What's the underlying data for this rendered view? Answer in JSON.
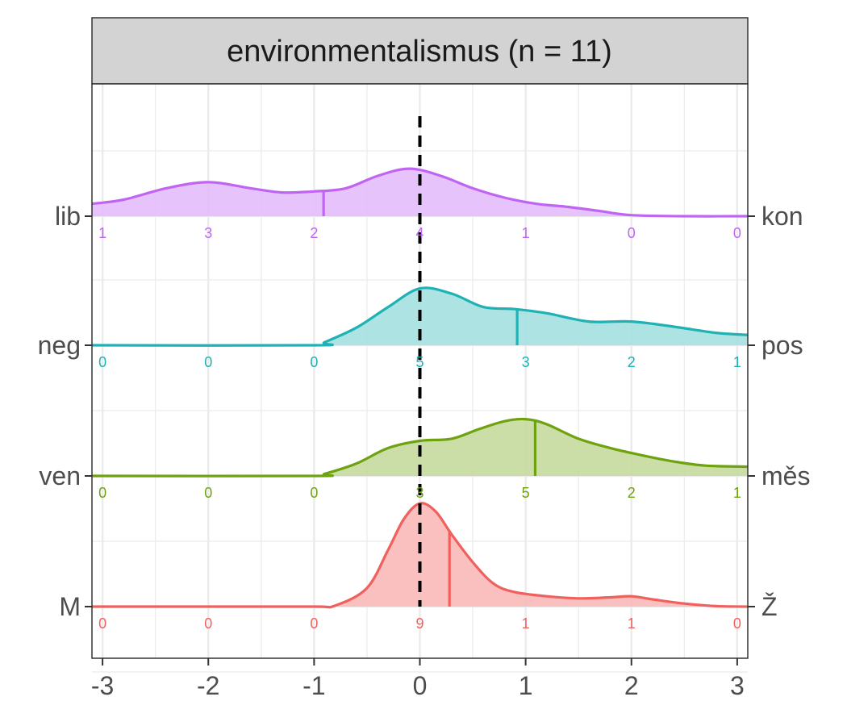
{
  "strip_title": "environmentalismus (n = 11)",
  "chart_data": {
    "type": "ridgeline",
    "title": "environmentalismus (n = 11)",
    "xlabel": "",
    "ylabel": "",
    "xlim": [
      -3.1,
      3.1
    ],
    "x_ticks": [
      -3,
      -2,
      -1,
      0,
      1,
      2,
      3
    ],
    "x_tick_labels": [
      "-3",
      "-2",
      "-1",
      "0",
      "1",
      "2",
      "3"
    ],
    "reference_line_x": 0,
    "count_positions": [
      -3,
      -2,
      -1,
      0,
      1,
      2,
      3
    ],
    "series": [
      {
        "left_label": "M",
        "right_label": "Ž",
        "color": "#F0605D",
        "fill": "#F8B9B8",
        "mean": 0.28,
        "counts": [
          "0",
          "0",
          "0",
          "9",
          "1",
          "1",
          "0"
        ],
        "density": [
          [
            -3.1,
            0
          ],
          [
            -2,
            0
          ],
          [
            -1,
            0
          ],
          [
            -0.8,
            0.01
          ],
          [
            -0.5,
            0.18
          ],
          [
            -0.3,
            0.55
          ],
          [
            -0.15,
            0.85
          ],
          [
            0,
            1.0
          ],
          [
            0.15,
            0.92
          ],
          [
            0.3,
            0.7
          ],
          [
            0.5,
            0.43
          ],
          [
            0.7,
            0.22
          ],
          [
            0.9,
            0.14
          ],
          [
            1.2,
            0.1
          ],
          [
            1.5,
            0.08
          ],
          [
            1.8,
            0.09
          ],
          [
            2.0,
            0.1
          ],
          [
            2.2,
            0.07
          ],
          [
            2.5,
            0.03
          ],
          [
            2.8,
            0.005
          ],
          [
            3.1,
            0
          ]
        ]
      },
      {
        "left_label": "ven",
        "right_label": "měs",
        "color": "#6FA20F",
        "fill": "#C5DA9F",
        "mean": 1.09,
        "counts": [
          "0",
          "0",
          "0",
          "3",
          "5",
          "2",
          "1"
        ],
        "density": [
          [
            -3.1,
            0
          ],
          [
            -1,
            0
          ],
          [
            -0.9,
            0.02
          ],
          [
            -0.6,
            0.12
          ],
          [
            -0.3,
            0.27
          ],
          [
            0,
            0.34
          ],
          [
            0.3,
            0.36
          ],
          [
            0.55,
            0.45
          ],
          [
            0.8,
            0.53
          ],
          [
            1.0,
            0.55
          ],
          [
            1.2,
            0.5
          ],
          [
            1.5,
            0.36
          ],
          [
            1.8,
            0.27
          ],
          [
            2.1,
            0.2
          ],
          [
            2.4,
            0.14
          ],
          [
            2.7,
            0.1
          ],
          [
            3.1,
            0.09
          ]
        ]
      },
      {
        "left_label": "neg",
        "right_label": "pos",
        "color": "#1FB1B3",
        "fill": "#A5E0E1",
        "mean": 0.92,
        "counts": [
          "0",
          "0",
          "0",
          "5",
          "3",
          "2",
          "1"
        ],
        "density": [
          [
            -3.1,
            0
          ],
          [
            -1,
            0
          ],
          [
            -0.9,
            0.03
          ],
          [
            -0.6,
            0.17
          ],
          [
            -0.3,
            0.37
          ],
          [
            0,
            0.55
          ],
          [
            0.3,
            0.5
          ],
          [
            0.6,
            0.37
          ],
          [
            0.9,
            0.35
          ],
          [
            1.2,
            0.31
          ],
          [
            1.6,
            0.23
          ],
          [
            2.0,
            0.23
          ],
          [
            2.4,
            0.18
          ],
          [
            2.8,
            0.12
          ],
          [
            3.1,
            0.1
          ]
        ]
      },
      {
        "left_label": "lib",
        "right_label": "kon",
        "color": "#C065F3",
        "fill": "#E3BDFB",
        "mean": -0.91,
        "counts": [
          "1",
          "3",
          "2",
          "4",
          "1",
          "0",
          "0"
        ],
        "density": [
          [
            -3.1,
            0.12
          ],
          [
            -2.8,
            0.16
          ],
          [
            -2.4,
            0.27
          ],
          [
            -2.0,
            0.33
          ],
          [
            -1.6,
            0.27
          ],
          [
            -1.3,
            0.23
          ],
          [
            -1.0,
            0.24
          ],
          [
            -0.7,
            0.27
          ],
          [
            -0.4,
            0.39
          ],
          [
            -0.1,
            0.46
          ],
          [
            0.2,
            0.39
          ],
          [
            0.5,
            0.27
          ],
          [
            0.8,
            0.18
          ],
          [
            1.1,
            0.12
          ],
          [
            1.4,
            0.09
          ],
          [
            1.7,
            0.05
          ],
          [
            2.0,
            0.01
          ],
          [
            2.5,
            0
          ],
          [
            3.1,
            0
          ]
        ]
      }
    ]
  }
}
